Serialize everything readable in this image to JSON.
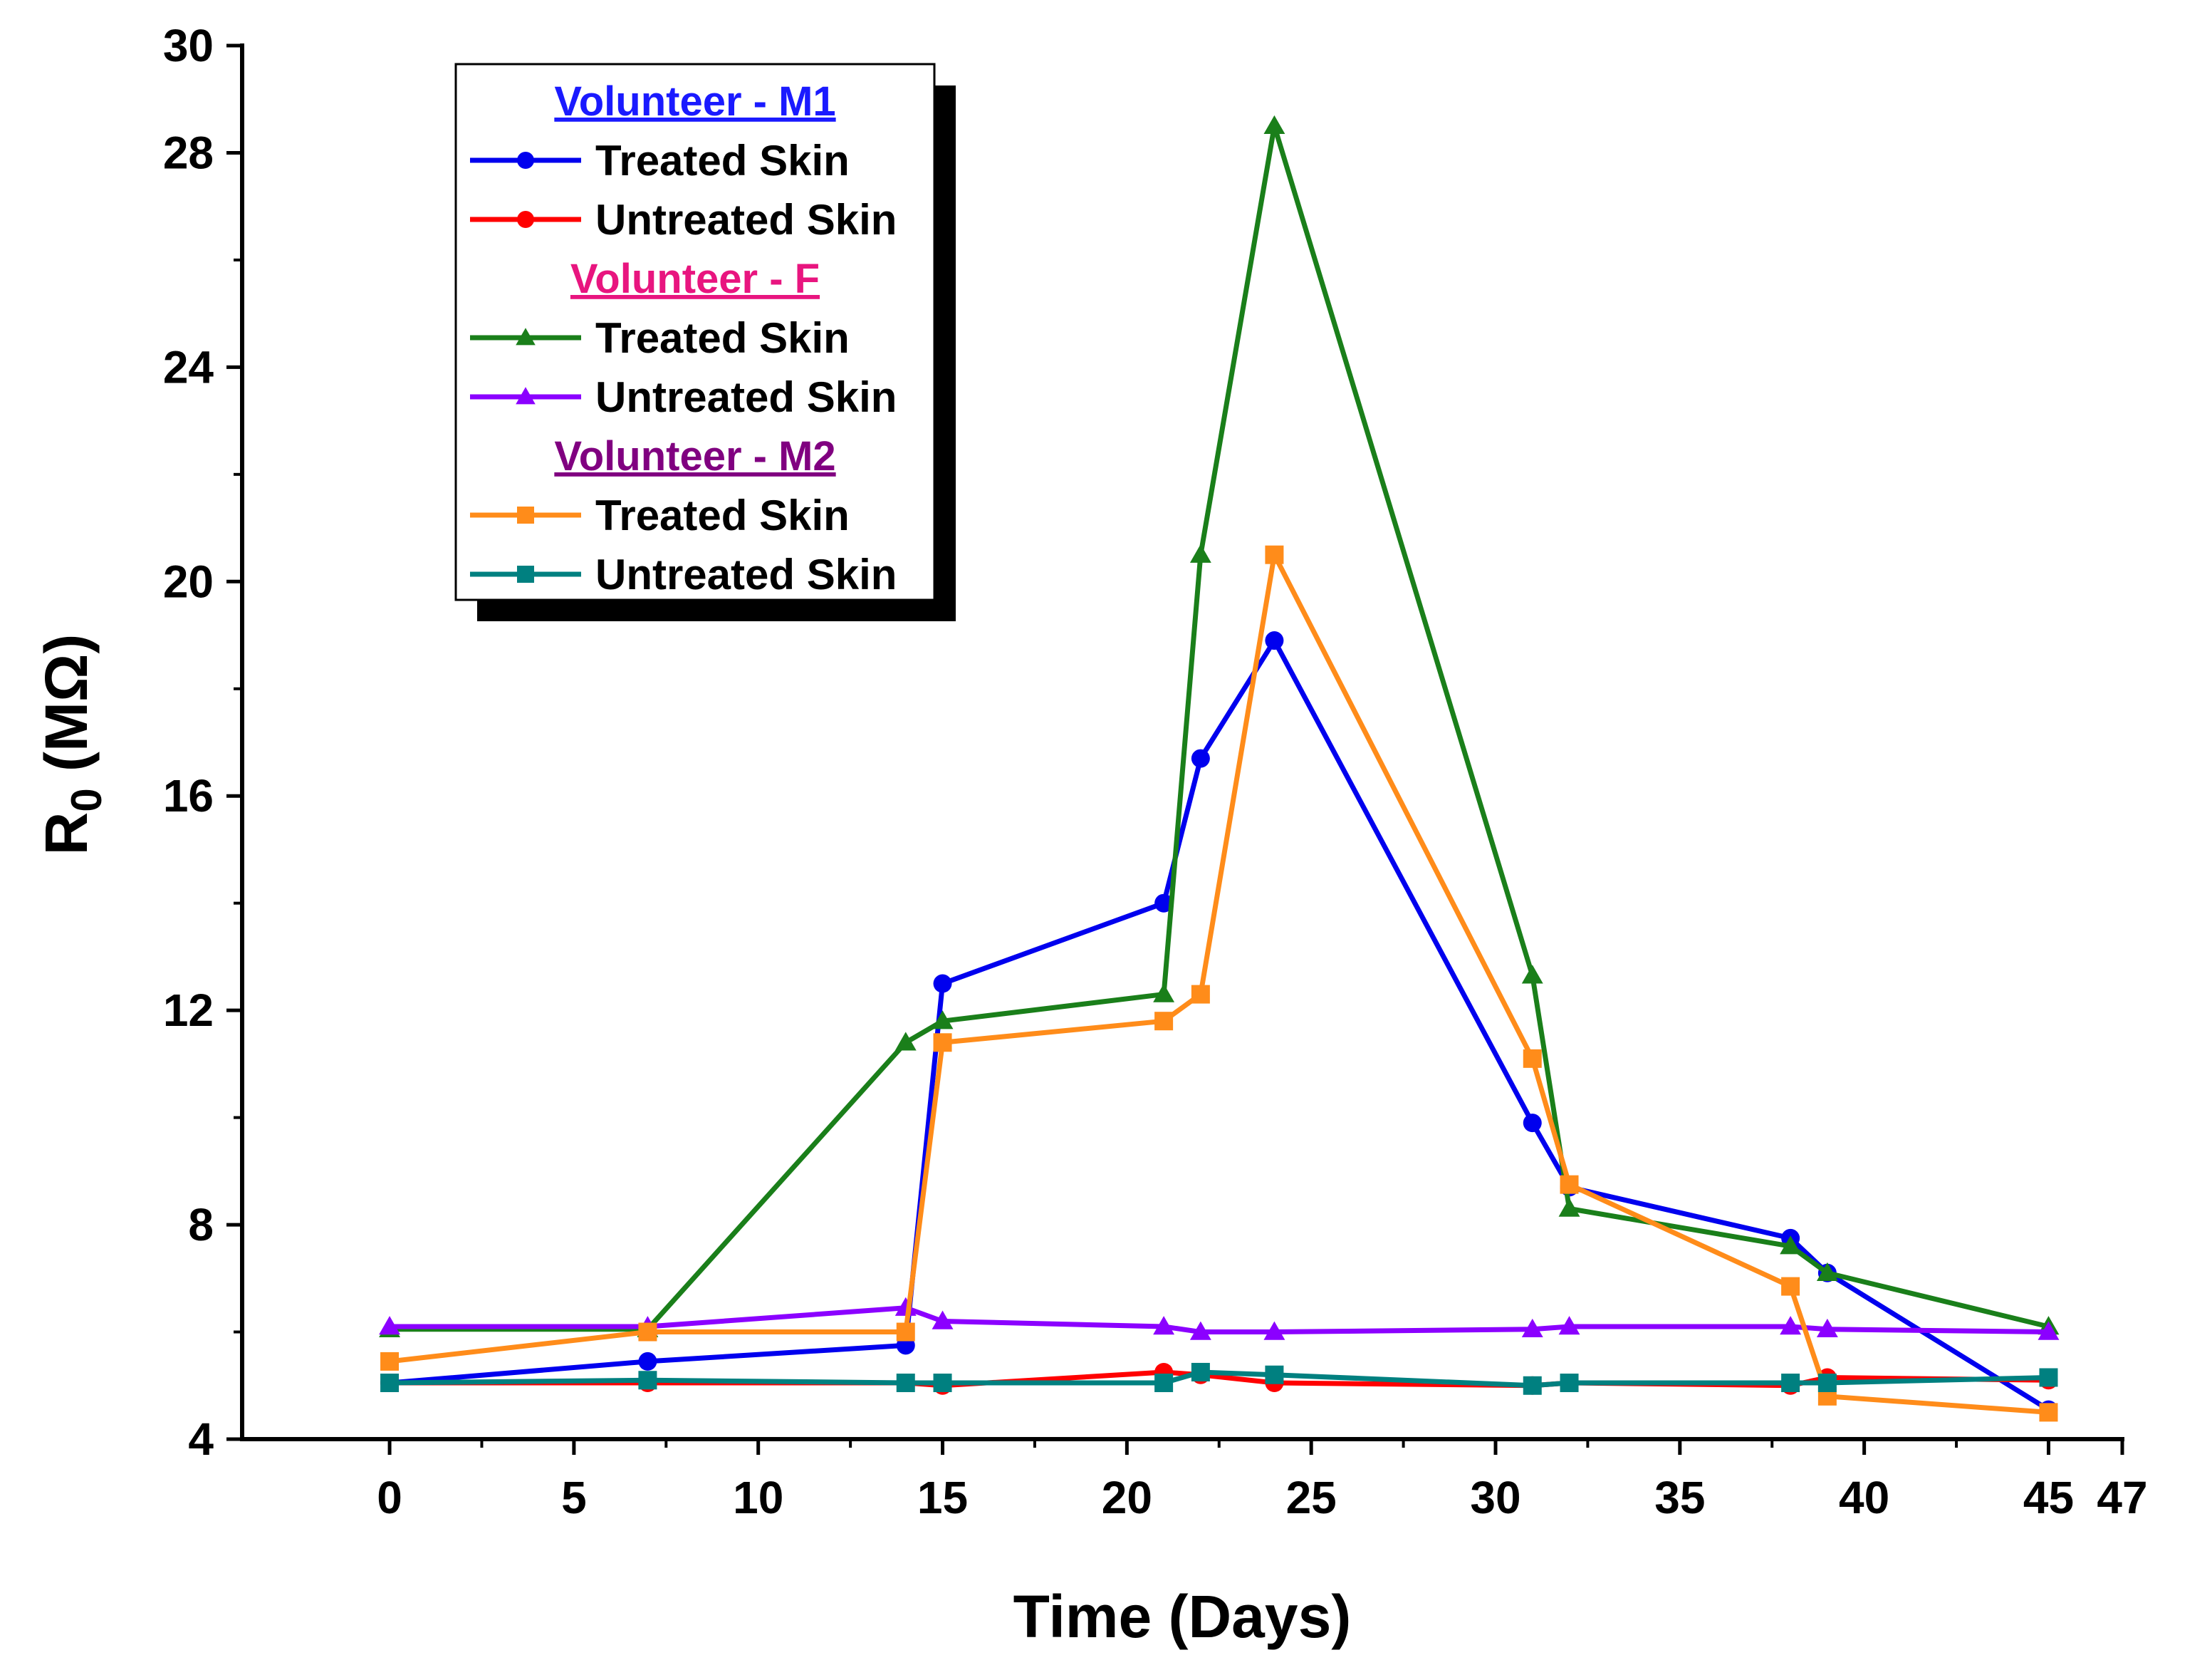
{
  "chart_data": {
    "type": "line",
    "xlabel": "Time (Days)",
    "ylabel_main": "R",
    "ylabel_sub": "0",
    "ylabel_unit": " (MΩ)",
    "xlim": [
      -4,
      47
    ],
    "ylim": [
      4,
      30
    ],
    "x_ticks": [
      0,
      5,
      10,
      15,
      20,
      25,
      30,
      35,
      40,
      45,
      47
    ],
    "x_tick_labels": [
      "0",
      "5",
      "10",
      "15",
      "20",
      "25",
      "30",
      "35",
      "40",
      "45",
      "47"
    ],
    "y_ticks": [
      4,
      8,
      12,
      16,
      20,
      24,
      28,
      30
    ],
    "y_tick_labels": [
      "4",
      "8",
      "12",
      "16",
      "20",
      "24",
      "28",
      "30"
    ],
    "grid": false,
    "legend_position": "top-left",
    "legend_groups": [
      {
        "title": "Volunteer - M1",
        "title_color": "#1a1aff",
        "series_indices": [
          0,
          1
        ]
      },
      {
        "title": "Volunteer - F",
        "title_color": "#e8157f",
        "series_indices": [
          2,
          3
        ]
      },
      {
        "title": "Volunteer - M2",
        "title_color": "#800080",
        "series_indices": [
          4,
          5
        ]
      }
    ],
    "series": [
      {
        "name": "Treated Skin",
        "color": "#0000ee",
        "marker": "circle",
        "points": [
          [
            0,
            5.05
          ],
          [
            7,
            5.45
          ],
          [
            14,
            5.75
          ],
          [
            15,
            12.5
          ],
          [
            21,
            14.0
          ],
          [
            22,
            16.7
          ],
          [
            24,
            18.9
          ],
          [
            31,
            9.9
          ],
          [
            32,
            8.7
          ],
          [
            38,
            7.75
          ],
          [
            39,
            7.1
          ],
          [
            45,
            4.55
          ]
        ]
      },
      {
        "name": "Untreated Skin",
        "color": "#ff0000",
        "marker": "circle",
        "points": [
          [
            0,
            5.05
          ],
          [
            7,
            5.05
          ],
          [
            14,
            5.05
          ],
          [
            15,
            5.0
          ],
          [
            21,
            5.25
          ],
          [
            22,
            5.2
          ],
          [
            24,
            5.05
          ],
          [
            31,
            5.0
          ],
          [
            32,
            5.05
          ],
          [
            38,
            5.0
          ],
          [
            39,
            5.15
          ],
          [
            45,
            5.1
          ]
        ]
      },
      {
        "name": "Treated Skin",
        "color": "#1a7f1a",
        "marker": "triangle",
        "points": [
          [
            0,
            6.05
          ],
          [
            7,
            6.05
          ],
          [
            14,
            11.4
          ],
          [
            15,
            11.8
          ],
          [
            21,
            12.3
          ],
          [
            22,
            20.5
          ],
          [
            24,
            28.5
          ],
          [
            31,
            12.65
          ],
          [
            32,
            8.3
          ],
          [
            38,
            7.6
          ],
          [
            39,
            7.1
          ],
          [
            45,
            6.1
          ]
        ]
      },
      {
        "name": "Untreated Skin",
        "color": "#8b00ff",
        "marker": "triangle",
        "points": [
          [
            0,
            6.1
          ],
          [
            7,
            6.1
          ],
          [
            14,
            6.45
          ],
          [
            15,
            6.2
          ],
          [
            21,
            6.1
          ],
          [
            22,
            6.0
          ],
          [
            24,
            6.0
          ],
          [
            31,
            6.05
          ],
          [
            32,
            6.1
          ],
          [
            38,
            6.1
          ],
          [
            39,
            6.05
          ],
          [
            45,
            6.0
          ]
        ]
      },
      {
        "name": "Treated Skin",
        "color": "#ff8c1a",
        "marker": "square",
        "points": [
          [
            0,
            5.45
          ],
          [
            7,
            6.0
          ],
          [
            14,
            6.0
          ],
          [
            15,
            11.4
          ],
          [
            21,
            11.8
          ],
          [
            22,
            12.3
          ],
          [
            24,
            20.5
          ],
          [
            31,
            11.1
          ],
          [
            32,
            8.75
          ],
          [
            38,
            6.85
          ],
          [
            39,
            4.8
          ],
          [
            45,
            4.5
          ]
        ]
      },
      {
        "name": "Untreated Skin",
        "color": "#008080",
        "marker": "square",
        "points": [
          [
            0,
            5.05
          ],
          [
            7,
            5.1
          ],
          [
            14,
            5.05
          ],
          [
            15,
            5.05
          ],
          [
            21,
            5.05
          ],
          [
            22,
            5.25
          ],
          [
            24,
            5.2
          ],
          [
            31,
            5.0
          ],
          [
            32,
            5.05
          ],
          [
            38,
            5.05
          ],
          [
            39,
            5.05
          ],
          [
            45,
            5.15
          ]
        ]
      }
    ]
  }
}
